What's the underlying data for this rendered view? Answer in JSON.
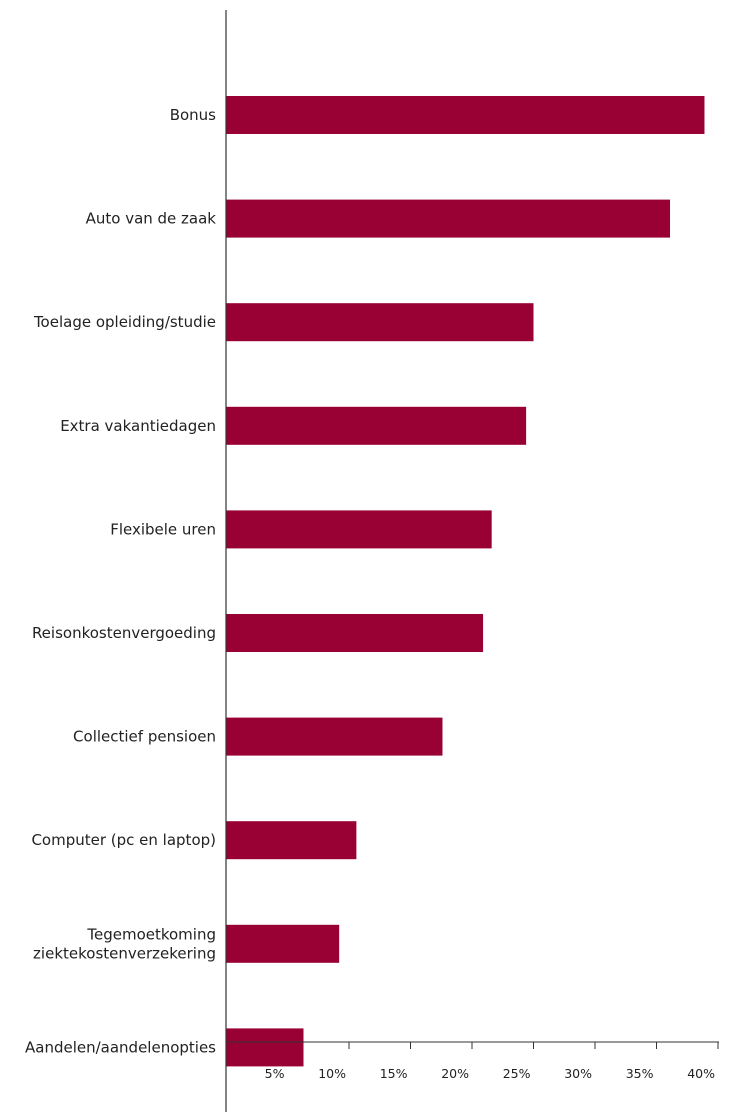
{
  "chart_data": {
    "type": "bar",
    "orientation": "horizontal",
    "title": "",
    "xlabel": "",
    "ylabel": "",
    "categories": [
      [
        "Bonus"
      ],
      [
        "Auto van de zaak"
      ],
      [
        "Toelage opleiding/studie"
      ],
      [
        "Extra vakantiedagen"
      ],
      [
        "Flexibele uren"
      ],
      [
        "Reisonkostenvergoeding"
      ],
      [
        "Collectief pensioen"
      ],
      [
        "Computer (pc en laptop)"
      ],
      [
        "Tegemoetkoming",
        "ziektekostenverzekering"
      ],
      [
        "Aandelen/aandelenopties"
      ]
    ],
    "values": [
      38.9,
      36.1,
      25.0,
      24.4,
      21.6,
      20.9,
      17.6,
      10.6,
      9.2,
      6.3
    ],
    "xlim": [
      0,
      40
    ],
    "ticks": [
      5,
      10,
      15,
      20,
      25,
      30,
      35,
      40
    ],
    "tick_labels": [
      "5%",
      "10%",
      "15%",
      "20%",
      "25%",
      "30%",
      "35%",
      "40%"
    ],
    "grid": false,
    "legend": "none",
    "bar_color": "#990033",
    "axis_color": "#333333"
  }
}
